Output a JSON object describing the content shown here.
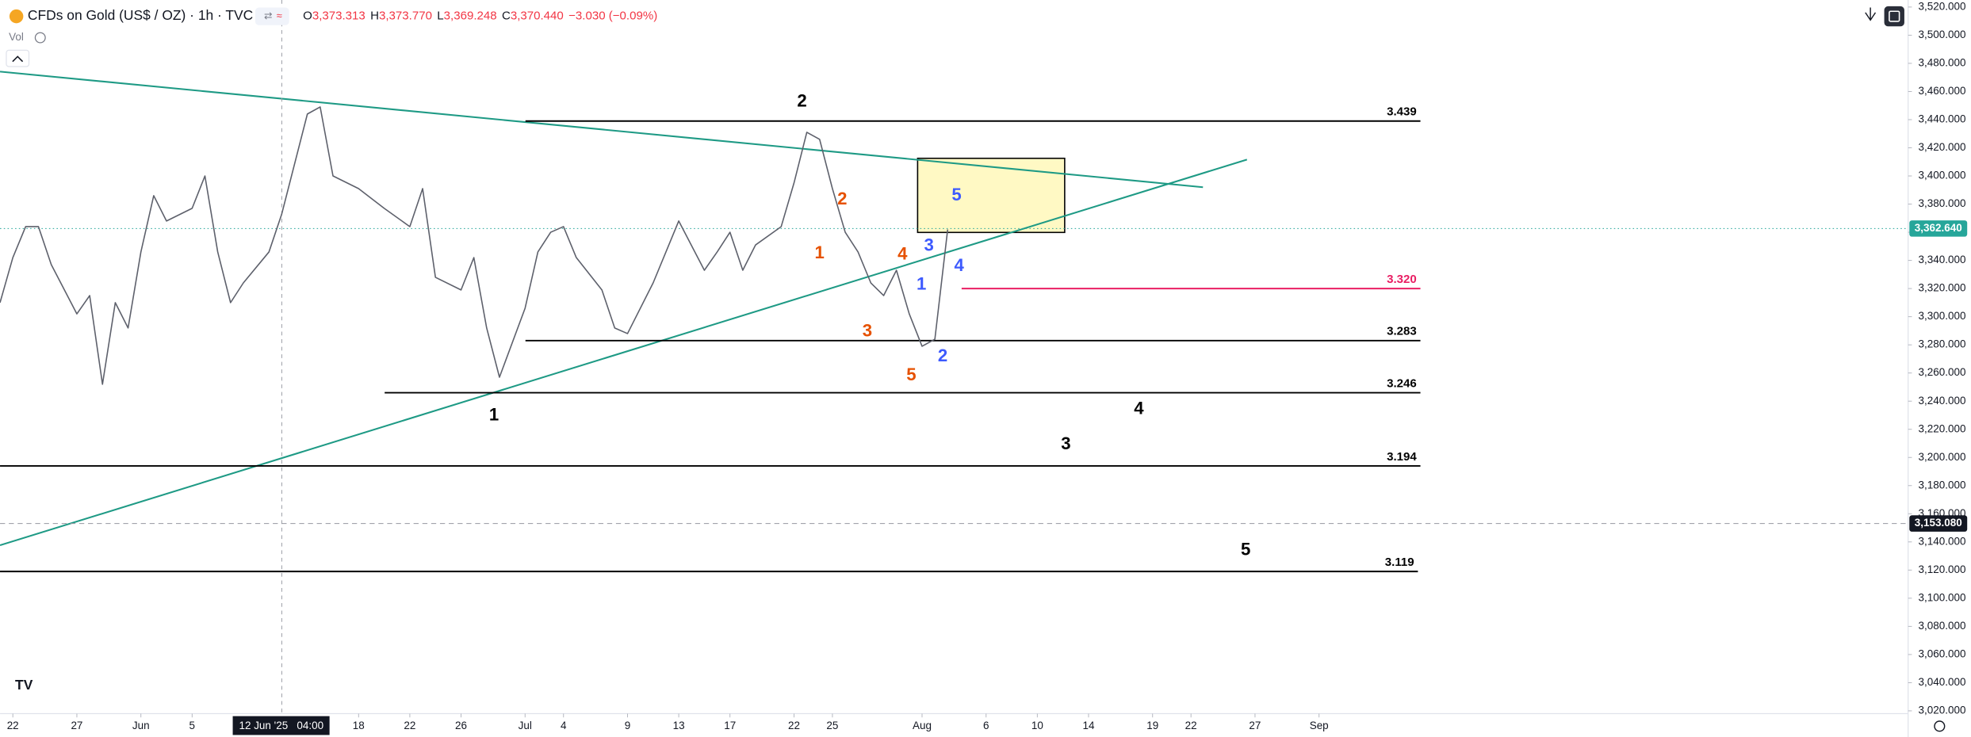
{
  "header": {
    "symbol": "CFDs on Gold (US$ / OZ) · 1h · TVC",
    "ohlc": [
      {
        "key": "O",
        "value": "3,373.313"
      },
      {
        "key": "H",
        "value": "3,373.770"
      },
      {
        "key": "L",
        "value": "3,369.248"
      },
      {
        "key": "C",
        "value": "3,370.440"
      }
    ],
    "change": "−3.030 (−0.09%)",
    "volume_label": "Vol"
  },
  "chart_data": {
    "type": "line",
    "color": "#5d606b",
    "x": [
      "2025-05-21",
      "2025-05-22",
      "2025-05-23",
      "2025-05-24",
      "2025-05-25",
      "2025-05-27",
      "2025-05-28",
      "2025-05-29",
      "2025-05-30",
      "2025-05-31",
      "2025-06-01",
      "2025-06-02",
      "2025-06-03",
      "2025-06-05",
      "2025-06-06",
      "2025-06-07",
      "2025-06-08",
      "2025-06-09",
      "2025-06-11",
      "2025-06-12",
      "2025-06-14",
      "2025-06-15",
      "2025-06-16",
      "2025-06-18",
      "2025-06-20",
      "2025-06-22",
      "2025-06-23",
      "2025-06-24",
      "2025-06-26",
      "2025-06-27",
      "2025-06-28",
      "2025-06-29",
      "2025-07-01",
      "2025-07-02",
      "2025-07-03",
      "2025-07-04",
      "2025-07-05",
      "2025-07-07",
      "2025-07-08",
      "2025-07-09",
      "2025-07-11",
      "2025-07-12",
      "2025-07-13",
      "2025-07-15",
      "2025-07-16",
      "2025-07-17",
      "2025-07-18",
      "2025-07-19",
      "2025-07-21",
      "2025-07-22",
      "2025-07-23",
      "2025-07-24",
      "2025-07-25",
      "2025-07-26",
      "2025-07-27",
      "2025-07-28",
      "2025-07-29",
      "2025-07-30",
      "2025-07-31",
      "2025-08-01",
      "2025-08-02",
      "2025-08-03"
    ],
    "values": [
      3310,
      3342,
      3364,
      3364,
      3337,
      3302,
      3315,
      3252,
      3310,
      3292,
      3346,
      3386,
      3368,
      3377,
      3400,
      3346,
      3310,
      3324,
      3346,
      3373,
      3444,
      3449,
      3400,
      3391,
      3377,
      3364,
      3391,
      3328,
      3319,
      3342,
      3292,
      3257,
      3306,
      3346,
      3360,
      3364,
      3342,
      3319,
      3292,
      3288,
      3324,
      3346,
      3368,
      3333,
      3346,
      3360,
      3333,
      3351,
      3364,
      3395,
      3431,
      3426,
      3391,
      3360,
      3346,
      3324,
      3315,
      3333,
      3302,
      3279,
      3284,
      3362
    ],
    "xlim": [
      "2025-05-21",
      "2025-10-17"
    ],
    "xticks": [
      {
        "value": "2025-05-22",
        "label": "22"
      },
      {
        "value": "2025-05-27",
        "label": "27"
      },
      {
        "value": "2025-06-01",
        "label": "Jun"
      },
      {
        "value": "2025-06-05",
        "label": "5"
      },
      {
        "value": "2025-06-18",
        "label": "18"
      },
      {
        "value": "2025-06-22",
        "label": "22"
      },
      {
        "value": "2025-06-26",
        "label": "26"
      },
      {
        "value": "2025-07-01",
        "label": "Jul"
      },
      {
        "value": "2025-07-04",
        "label": "4"
      },
      {
        "value": "2025-07-09",
        "label": "9"
      },
      {
        "value": "2025-07-13",
        "label": "13"
      },
      {
        "value": "2025-07-17",
        "label": "17"
      },
      {
        "value": "2025-07-22",
        "label": "22"
      },
      {
        "value": "2025-07-25",
        "label": "25"
      },
      {
        "value": "2025-08-01",
        "label": "Aug"
      },
      {
        "value": "2025-08-06",
        "label": "6"
      },
      {
        "value": "2025-08-10",
        "label": "10"
      },
      {
        "value": "2025-08-14",
        "label": "14"
      },
      {
        "value": "2025-08-19",
        "label": "19"
      },
      {
        "value": "2025-08-22",
        "label": "22"
      },
      {
        "value": "2025-08-27",
        "label": "27"
      },
      {
        "value": "2025-09-01",
        "label": "Sep"
      }
    ],
    "ylim": [
      3018,
      3525
    ],
    "yticks": [
      {
        "value": 3020,
        "label": "3,020.000"
      },
      {
        "value": 3040,
        "label": "3,040.000"
      },
      {
        "value": 3060,
        "label": "3,060.000"
      },
      {
        "value": 3080,
        "label": "3,080.000"
      },
      {
        "value": 3100,
        "label": "3,100.000"
      },
      {
        "value": 3120,
        "label": "3,120.000"
      },
      {
        "value": 3140,
        "label": "3,140.000"
      },
      {
        "value": 3160,
        "label": "3,160.000"
      },
      {
        "value": 3180,
        "label": "3,180.000"
      },
      {
        "value": 3200,
        "label": "3,200.000"
      },
      {
        "value": 3220,
        "label": "3,220.000"
      },
      {
        "value": 3240,
        "label": "3,240.000"
      },
      {
        "value": 3260,
        "label": "3,260.000"
      },
      {
        "value": 3280,
        "label": "3,280.000"
      },
      {
        "value": 3300,
        "label": "3,300.000"
      },
      {
        "value": 3320,
        "label": "3,320.000"
      },
      {
        "value": 3340,
        "label": "3,340.000"
      },
      {
        "value": 3360,
        "label": "3,360.000"
      },
      {
        "value": 3380,
        "label": "3,380.000"
      },
      {
        "value": 3400,
        "label": "3,400.000"
      },
      {
        "value": 3420,
        "label": "3,420.000"
      },
      {
        "value": 3440,
        "label": "3,440.000"
      },
      {
        "value": 3460,
        "label": "3,460.000"
      },
      {
        "value": 3480,
        "label": "3,480.000"
      },
      {
        "value": 3500,
        "label": "3,500.000"
      },
      {
        "value": 3520,
        "label": "3,520.000"
      }
    ],
    "levels": [
      {
        "value": 3439,
        "label": "3.439",
        "color": "#000000"
      },
      {
        "value": 3320,
        "label": "3.320",
        "color": "#e91e63"
      },
      {
        "value": 3283,
        "label": "3.283",
        "color": "#000000"
      },
      {
        "value": 3246,
        "label": "3.246",
        "color": "#000000"
      },
      {
        "value": 3194,
        "label": "3.194",
        "color": "#000000"
      },
      {
        "value": 3119,
        "label": "3.119",
        "color": "#000000"
      }
    ],
    "price_labels": [
      {
        "value": 3362.64,
        "label": "3,362.640",
        "color": "#26a69a"
      },
      {
        "value": 3153.08,
        "label": "3,153.080",
        "color": "#131722"
      }
    ],
    "crosshair": {
      "x": "2025-06-12",
      "label": "12 Jun '25",
      "time": "04:00"
    },
    "wave_labels": [
      {
        "label": "2",
        "color": "#000000"
      },
      {
        "label": "1",
        "color": "#000000"
      },
      {
        "label": "4",
        "color": "#000000"
      },
      {
        "label": "3",
        "color": "#000000"
      },
      {
        "label": "5",
        "color": "#000000"
      },
      {
        "label": "2",
        "color": "#e65100"
      },
      {
        "label": "1",
        "color": "#e65100"
      },
      {
        "label": "4",
        "color": "#e65100"
      },
      {
        "label": "3",
        "color": "#e65100"
      },
      {
        "label": "5",
        "color": "#e65100"
      },
      {
        "label": "5",
        "color": "#3d5afe"
      },
      {
        "label": "3",
        "color": "#3d5afe"
      },
      {
        "label": "4",
        "color": "#3d5afe"
      },
      {
        "label": "1",
        "color": "#3d5afe"
      },
      {
        "label": "2",
        "color": "#3d5afe"
      }
    ]
  }
}
